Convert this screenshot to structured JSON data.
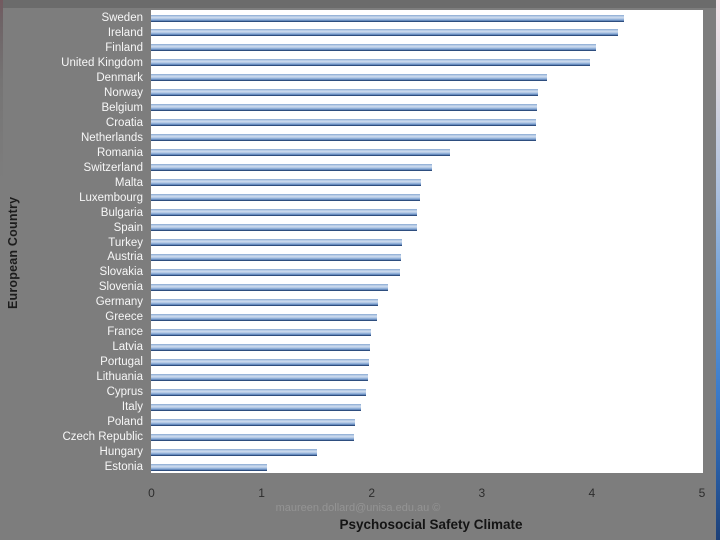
{
  "slide": {
    "watermark": "maureen.dollard@unisa.edu.au ©"
  },
  "chart_data": {
    "type": "bar",
    "orientation": "horizontal",
    "title": "",
    "xlabel": "Psychosocial Safety Climate",
    "ylabel": "European Country",
    "xlim": [
      0,
      5
    ],
    "x_ticks": [
      0,
      1,
      2,
      3,
      4,
      5
    ],
    "grid": false,
    "legend": false,
    "sort_order": "descending",
    "categories": [
      "Sweden",
      "Ireland",
      "Finland",
      "United Kingdom",
      "Denmark",
      "Norway",
      "Belgium",
      "Croatia",
      "Netherlands",
      "Romania",
      "Switzerland",
      "Malta",
      "Luxembourg",
      "Bulgaria",
      "Spain",
      "Turkey",
      "Austria",
      "Slovakia",
      "Slovenia",
      "Germany",
      "Greece",
      "France",
      "Latvia",
      "Portugal",
      "Lithuania",
      "Cyprus",
      "Italy",
      "Poland",
      "Czech Republic",
      "Hungary",
      "Estonia"
    ],
    "values": [
      4.29,
      4.24,
      4.04,
      3.98,
      3.59,
      3.51,
      3.5,
      3.49,
      3.49,
      2.71,
      2.55,
      2.45,
      2.44,
      2.41,
      2.41,
      2.28,
      2.27,
      2.26,
      2.15,
      2.06,
      2.05,
      2.0,
      1.99,
      1.98,
      1.97,
      1.95,
      1.91,
      1.85,
      1.84,
      1.51,
      1.05
    ]
  },
  "colors": {
    "background": "#7d7d7d",
    "top_band": "#6b6b6b",
    "plot_background": "#ffffff",
    "bar_fill": "#a9c2e2",
    "bar_edge": "#27477a",
    "category_label_text": "#f7f7f7",
    "axis_tick_text": "#2d2d2d",
    "axis_title_text": "#1c1c1c",
    "watermark_text": "#949494"
  }
}
